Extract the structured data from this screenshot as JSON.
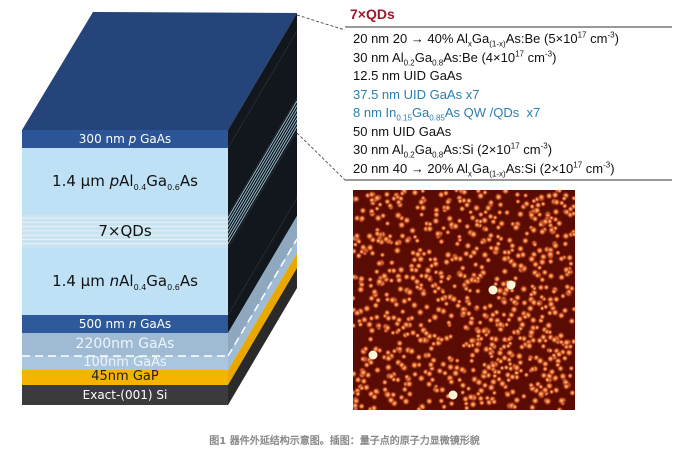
{
  "block": {
    "layers": [
      {
        "label": "300 nm ",
        "italic": "p",
        "rest": " GaAs",
        "color": "#2c5598"
      },
      {
        "label": "1.4 µm ",
        "italic": "p",
        "rest": "Al",
        "sub1": "0.4",
        "mid": "Ga",
        "sub2": "0.6",
        "end": "As",
        "color": "#bfe1f6"
      },
      {
        "label": "7×QDs",
        "color": "#c9e3f0"
      },
      {
        "label": "1.4 µm ",
        "italic": "n",
        "rest": "Al",
        "sub1": "0.4",
        "mid": "Ga",
        "sub2": "0.6",
        "end": "As",
        "color": "#bfe1f6"
      },
      {
        "label": "500 nm ",
        "italic": "n",
        "rest": " GaAs",
        "color": "#2e5a9c"
      },
      {
        "label": "2200nm GaAs",
        "color": "#9fbad3"
      },
      {
        "label": "100nm GaAs",
        "color": "#aac6de"
      },
      {
        "label": "45nm GaP",
        "color": "#f4b400"
      },
      {
        "label": "Exact-(001) Si",
        "color": "#3b3b3b"
      }
    ],
    "top_color": "#24447a",
    "side_color": "#12171d"
  },
  "inset": {
    "title": "7×QDs",
    "title_color": "#a0162a",
    "lines": [
      {
        "text": "20 nm 20 → 40% Al<sub>x</sub>Ga<sub>(1-x)</sub>As:Be (5×10<sup>17</sup> cm<sup>-3</sup>)",
        "color": "black"
      },
      {
        "text": "30 nm Al<sub>0.2</sub>Ga<sub>0.8</sub>As:Be (4×10<sup>17</sup> cm<sup>-3</sup>)",
        "color": "black"
      },
      {
        "text": "12.5 nm UID GaAs",
        "color": "black"
      },
      {
        "text": "37.5 nm UID GaAs x7",
        "color": "blue"
      },
      {
        "text": "8 nm In<sub>0.15</sub>Ga<sub>0.85</sub>As QW /QDs&nbsp; x7",
        "color": "blue"
      },
      {
        "text": "50 nm UID GaAs",
        "color": "black"
      },
      {
        "text": "30 nm Al<sub>0.2</sub>Ga<sub>0.8</sub>As:Si (2×10<sup>17</sup> cm<sup>-3</sup>)",
        "color": "black"
      },
      {
        "text": "20 nm 40 → 20% Al<sub>x</sub>Ga<sub>(1-x)</sub>As:Si (2×10<sup>17</sup> cm<sup>-3</sup>)",
        "color": "black"
      }
    ],
    "afm_colors": {
      "background": "#5a0c04",
      "dot": "#e0602a",
      "highlight": "#ffd890"
    }
  },
  "caption": "图1 器件外延结构示意图。插图：量子点的原子力显微镜形貌"
}
